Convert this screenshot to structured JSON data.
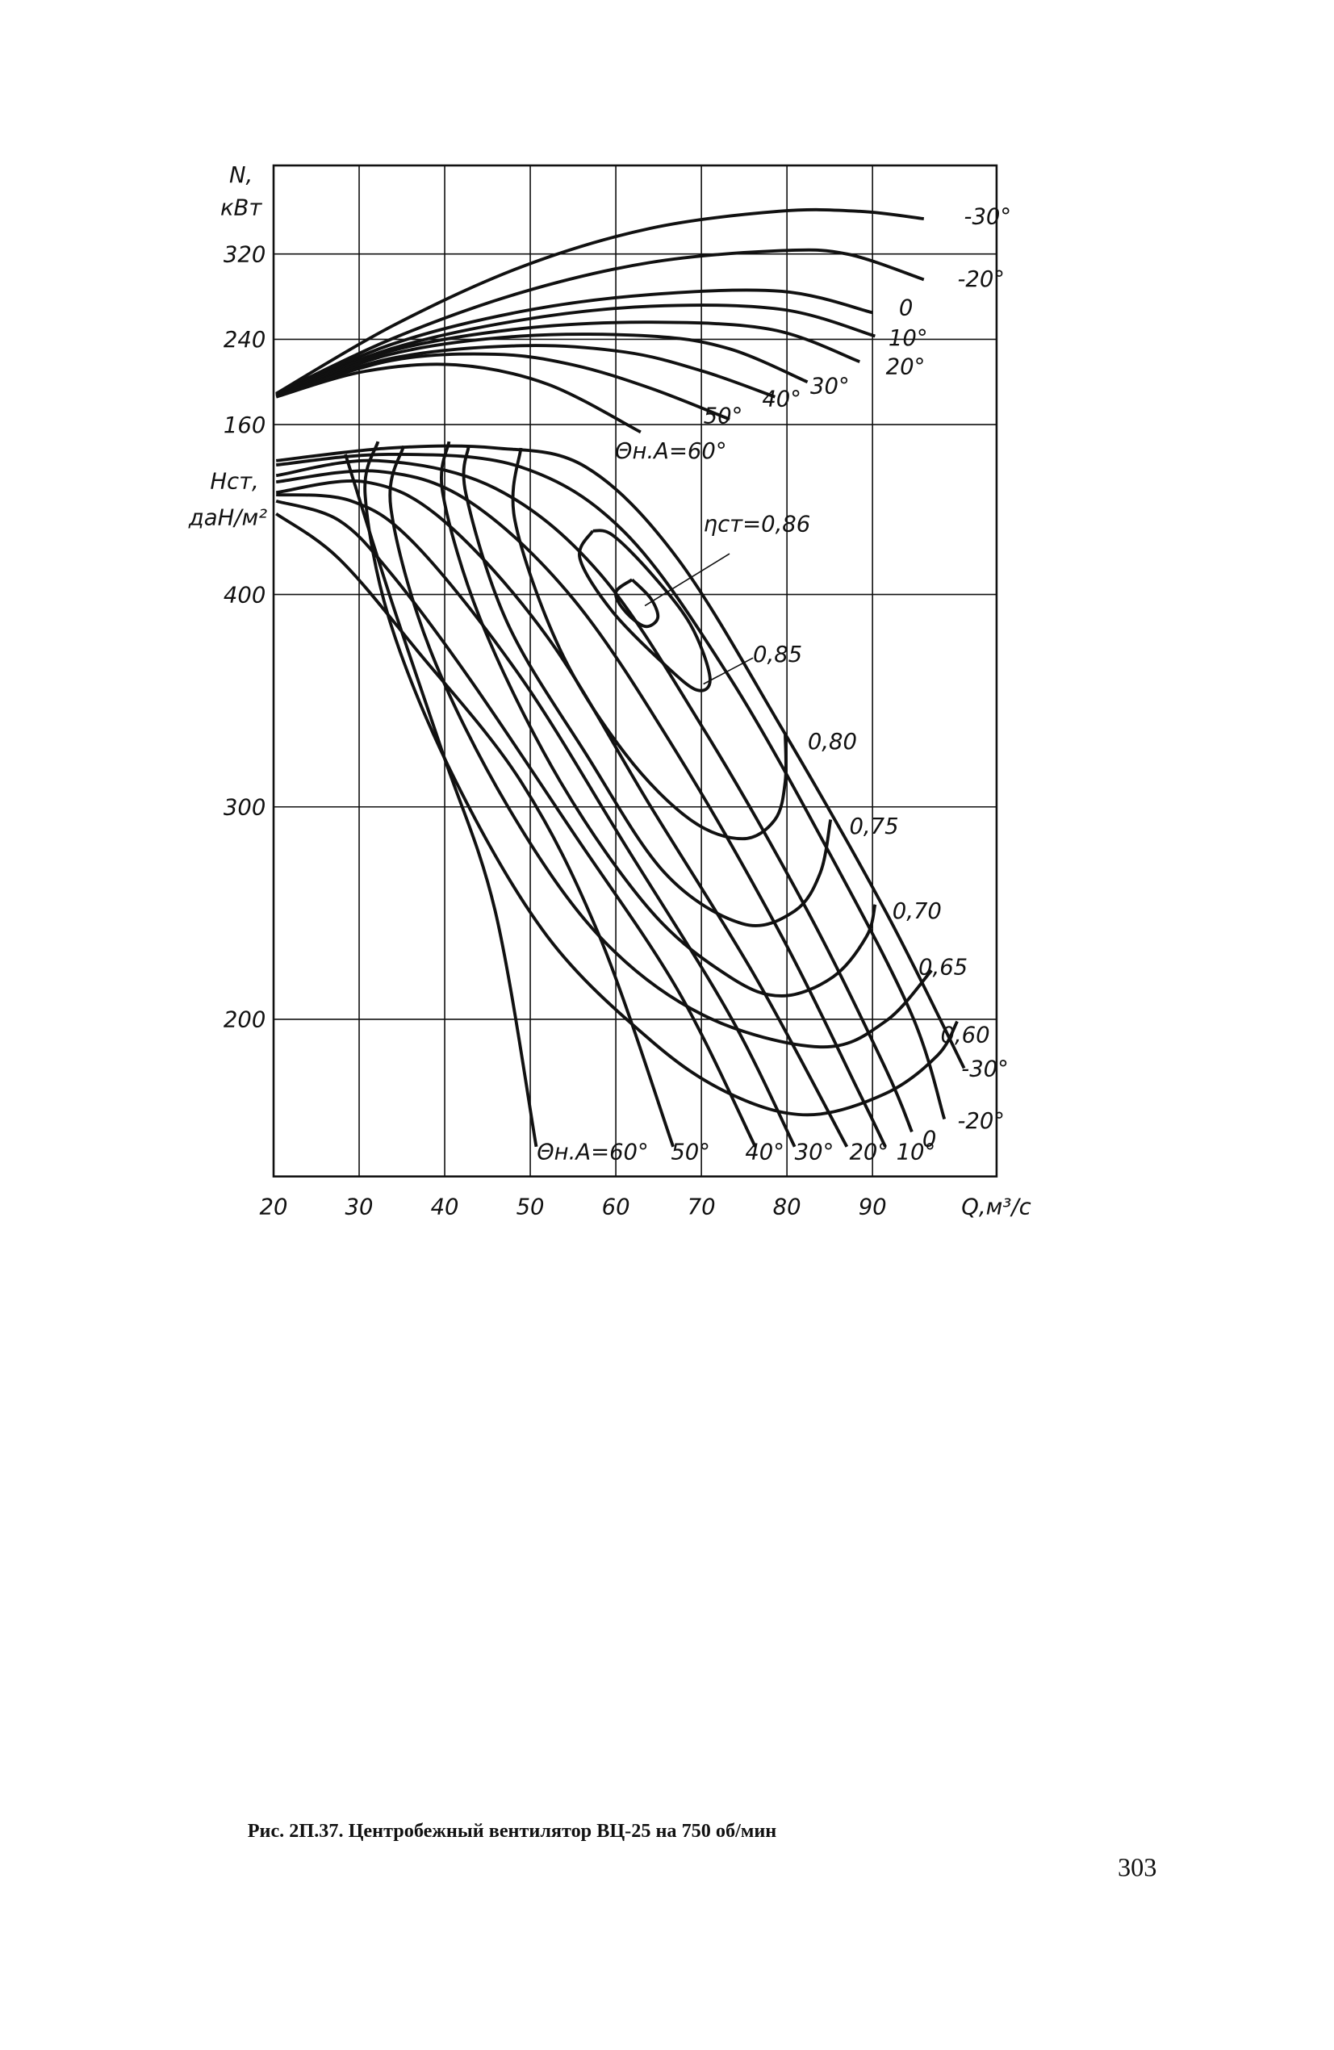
{
  "chart_data": {
    "type": "line",
    "caption": "Рис. 2П.37. Центробежный вентилятор ВЦ-25 на 750 об/мин",
    "page_number": "303",
    "xlabel": "Q,м³/с",
    "ylabel": [
      "Нст,",
      "даН/м²"
    ],
    "y2label": [
      "N,",
      "кВт"
    ],
    "xlim": [
      20,
      104.5
    ],
    "xticks": [
      20,
      30,
      40,
      50,
      60,
      70,
      80,
      90
    ],
    "ylim": [
      126,
      602
    ],
    "yticks": [
      200,
      300,
      400
    ],
    "y2lim": [
      -545,
      403
    ],
    "y2ticks": [
      160,
      240,
      320
    ],
    "grid": true,
    "color": "#111111",
    "series": [
      {
        "name": "-30°",
        "axis": "y2",
        "x": [
          20.3,
          34,
          49,
          64,
          79,
          88.5,
          96
        ],
        "values": [
          189,
          253,
          308,
          344,
          360,
          360,
          353
        ]
      },
      {
        "name": "-20°",
        "axis": "y2",
        "x": [
          20.3,
          34,
          49,
          64,
          79,
          87,
          96
        ],
        "values": [
          189,
          241,
          284,
          312,
          323,
          320,
          296
        ]
      },
      {
        "name": "0",
        "axis": "y2",
        "x": [
          20.3,
          33.7,
          48.9,
          64.1,
          79.4,
          90.0
        ],
        "values": [
          188,
          235,
          266,
          282,
          285,
          265
        ]
      },
      {
        "name": "10°",
        "axis": "y2",
        "x": [
          20.3,
          33.7,
          48.9,
          64.1,
          79.4,
          90.3
        ],
        "values": [
          188,
          231,
          258,
          271,
          268,
          243
        ]
      },
      {
        "name": "20°",
        "axis": "y2",
        "x": [
          20.3,
          33.7,
          48.9,
          64.1,
          78.3,
          88.5
        ],
        "values": [
          188,
          229,
          250,
          256,
          249,
          219
        ]
      },
      {
        "name": "30°",
        "axis": "y2",
        "x": [
          20.3,
          33.7,
          48.9,
          64.1,
          73.3,
          82.4
        ],
        "values": [
          187,
          226,
          243,
          243,
          231,
          200
        ]
      },
      {
        "name": "40°",
        "axis": "y2",
        "x": [
          20.3,
          33.7,
          48.9,
          61.1,
          70.2,
          78.6
        ],
        "values": [
          187,
          222,
          234,
          228,
          210,
          186
        ]
      },
      {
        "name": "50°",
        "axis": "y2",
        "x": [
          20.3,
          33.7,
          45.9,
          55.0,
          64.1,
          73.3
        ],
        "values": [
          187,
          220,
          226,
          216,
          194,
          165
        ]
      },
      {
        "name": "Θн.А=60°",
        "axis": "y2",
        "x": [
          20.3,
          30.7,
          41.3,
          52.0,
          62.9
        ],
        "values": [
          186,
          210,
          216,
          198,
          153
        ]
      },
      {
        "name": "-30°",
        "x": [
          20.3,
          33.7,
          45.9,
          56.5,
          67.2,
          79.4,
          91.5,
          100.7
        ],
        "values": [
          463,
          469,
          469,
          460,
          417,
          337,
          251,
          177
        ]
      },
      {
        "name": "-20°",
        "x": [
          20.3,
          33.7,
          48.9,
          61.1,
          73.3,
          85.4,
          94.6,
          98.4
        ],
        "values": [
          461,
          466,
          460,
          429,
          361,
          275,
          202,
          153
        ]
      },
      {
        "name": "0",
        "x": [
          20.3,
          32.2,
          45.9,
          58.1,
          70.2,
          82.4,
          91.5,
          94.6
        ],
        "values": [
          456,
          463,
          450,
          410,
          337,
          251,
          177,
          147
        ]
      },
      {
        "name": "10°",
        "x": [
          20.3,
          32.2,
          42.8,
          55.0,
          67.2,
          79.4,
          88.5,
          91.5
        ],
        "values": [
          453,
          458,
          444,
          398,
          325,
          239,
          165,
          140
        ]
      },
      {
        "name": "20°",
        "x": [
          20.3,
          30.7,
          39.8,
          52.0,
          64.1,
          76.3,
          87.0
        ],
        "values": [
          448,
          453,
          435,
          380,
          300,
          220,
          140
        ]
      },
      {
        "name": "30°",
        "x": [
          20.3,
          29.1,
          36.7,
          48.9,
          61.1,
          73.3,
          80.9
        ],
        "values": [
          447,
          444,
          423,
          361,
          282,
          202,
          140
        ]
      },
      {
        "name": "40°",
        "x": [
          20.3,
          27.6,
          33.7,
          42.8,
          55.0,
          67.2,
          76.3
        ],
        "values": [
          444,
          435,
          410,
          361,
          288,
          214,
          140
        ]
      },
      {
        "name": "50°",
        "x": [
          20.3,
          27.6,
          36.7,
          48.9,
          58.1,
          66.7
        ],
        "values": [
          438,
          417,
          374,
          312,
          239,
          140
        ]
      },
      {
        "name": "Θн.А=60°",
        "x": [
          28.4,
          33.7,
          39.8,
          45.9,
          50.7
        ],
        "values": [
          466,
          398,
          325,
          251,
          140
        ]
      },
      {
        "name": "0,60",
        "x": [
          32.2,
          30.7,
          33.7,
          41.3,
          52.0,
          64.1,
          73.3,
          82.4,
          91.5,
          97.6,
          99.9
        ],
        "values": [
          472,
          447,
          386,
          312,
          239,
          190,
          165,
          155,
          165,
          183,
          199
        ]
      },
      {
        "name": "0,65",
        "x": [
          35.2,
          33.7,
          38.3,
          47.4,
          58.1,
          70.2,
          83.9,
          91.5,
          96.9
        ],
        "values": [
          470,
          441,
          374,
          300,
          239,
          202,
          187,
          199,
          223
        ]
      },
      {
        "name": "0,70",
        "x": [
          40.5,
          39.8,
          44.4,
          53.5,
          64.1,
          73.3,
          79.4,
          85.4,
          89.3,
          90.3
        ],
        "values": [
          472,
          447,
          386,
          312,
          251,
          220,
          211,
          220,
          239,
          254
        ]
      },
      {
        "name": "0,75",
        "x": [
          42.8,
          42.5,
          47.4,
          56.5,
          65.7,
          74.8,
          80.9,
          83.9,
          85.1
        ],
        "values": [
          470,
          447,
          386,
          325,
          269,
          245,
          251,
          269,
          294
        ]
      },
      {
        "name": "0,80",
        "x": [
          48.9,
          48.2,
          53.5,
          61.1,
          68.7,
          74.8,
          78.6,
          79.8,
          79.8
        ],
        "values": [
          469,
          435,
          374,
          325,
          294,
          285,
          294,
          312,
          334
        ]
      },
      {
        "name": "0,85",
        "x": [
          57.3,
          59.6,
          64.1,
          68.7,
          71.0,
          69.5,
          65.7,
          59.6,
          55.8,
          57.3
        ],
        "values": [
          430,
          428,
          410,
          386,
          361,
          355,
          367,
          392,
          417,
          430
        ]
      },
      {
        "name": "ηст=0,86",
        "x": [
          61.9,
          64.1,
          64.9,
          63.4,
          61.1,
          60.0,
          61.9
        ],
        "values": [
          407,
          398,
          389,
          385,
          392,
          401,
          407
        ]
      }
    ]
  }
}
